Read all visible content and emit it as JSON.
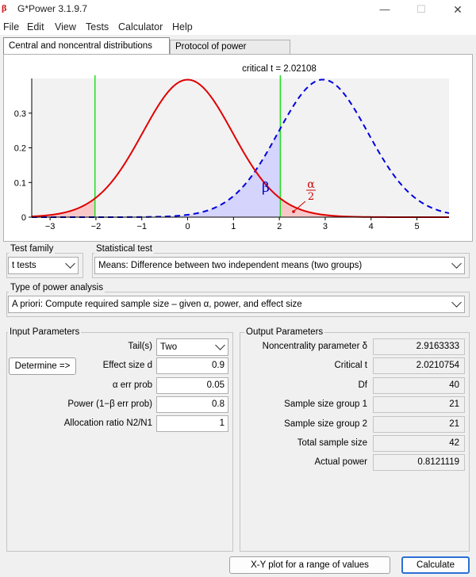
{
  "window": {
    "title": "G*Power 3.1.9.7",
    "icon_text": "β α"
  },
  "menu": [
    "File",
    "Edit",
    "View",
    "Tests",
    "Calculator",
    "Help"
  ],
  "tabs": {
    "central": "Central and noncentral distributions",
    "protocol": "Protocol of power analyses"
  },
  "chart_data": {
    "type": "line",
    "annotation": "critical t = 2.02108",
    "critical_t": 2.02108,
    "noncentrality": 2.9163333,
    "df": 40,
    "xlim": [
      -3.4,
      5.7
    ],
    "ylim": [
      0,
      0.4
    ],
    "x_ticks": [
      "-3",
      "-2",
      "-1",
      "0",
      "1",
      "2",
      "3",
      "4",
      "5"
    ],
    "y_ticks": [
      "0",
      "0.1",
      "0.2",
      "0.3"
    ],
    "series": [
      {
        "kind": "central",
        "color": "#e00000",
        "style": "solid"
      },
      {
        "kind": "noncentral",
        "color": "#0000e0",
        "style": "dashed"
      }
    ],
    "beta_label": "β",
    "alpha_label": {
      "num": "α",
      "den": "2"
    },
    "colors": {
      "critical_line": "#22dd22",
      "beta_fill": "#d4d4fc",
      "alpha_fill": "#f8c8c8"
    }
  },
  "test_family": {
    "label": "Test family",
    "value": "t tests"
  },
  "statistical_test": {
    "label": "Statistical test",
    "value": "Means: Difference between two independent means (two groups)"
  },
  "power_analysis": {
    "label": "Type of power analysis",
    "value": "A priori: Compute required sample size – given α, power, and effect size"
  },
  "input": {
    "title": "Input Parameters",
    "tails_label": "Tail(s)",
    "tails_value": "Two",
    "determine_button": "Determine =>",
    "rows": [
      {
        "label": "Effect size d",
        "value": "0.9"
      },
      {
        "label": "α err prob",
        "value": "0.05"
      },
      {
        "label": "Power (1−β err prob)",
        "value": "0.8"
      },
      {
        "label": "Allocation ratio N2/N1",
        "value": "1"
      }
    ]
  },
  "output": {
    "title": "Output Parameters",
    "rows": [
      {
        "label": "Noncentrality parameter δ",
        "value": "2.9163333"
      },
      {
        "label": "Critical t",
        "value": "2.0210754"
      },
      {
        "label": "Df",
        "value": "40"
      },
      {
        "label": "Sample size group 1",
        "value": "21"
      },
      {
        "label": "Sample size group 2",
        "value": "21"
      },
      {
        "label": "Total sample size",
        "value": "42"
      },
      {
        "label": "Actual power",
        "value": "0.8121119"
      }
    ]
  },
  "buttons": {
    "xy_plot": "X-Y plot for a range of values",
    "calculate": "Calculate"
  }
}
